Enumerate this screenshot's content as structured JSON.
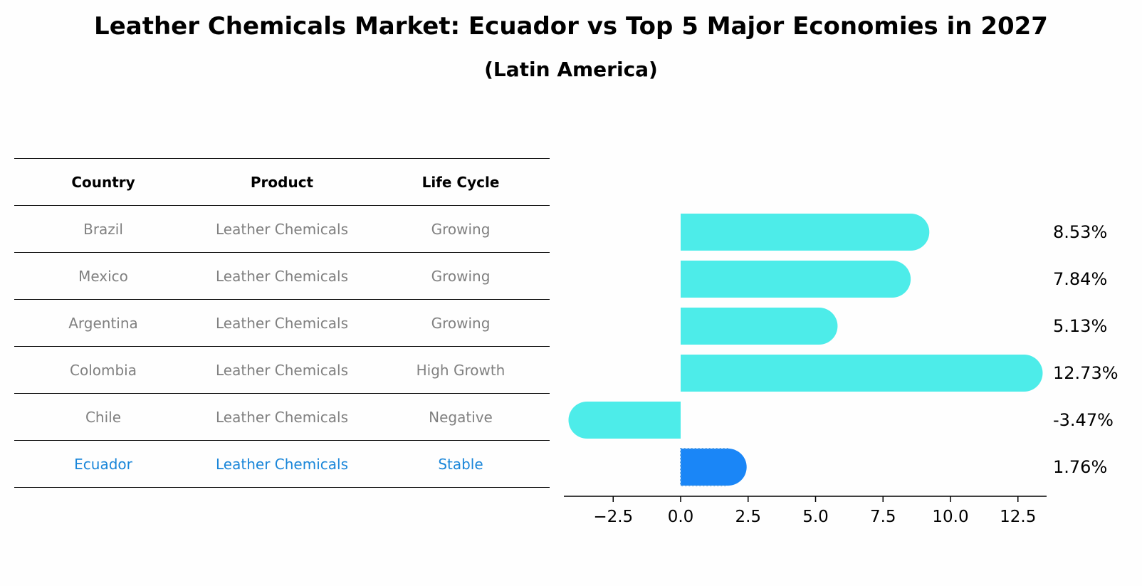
{
  "title": "Leather Chemicals Market: Ecuador vs Top 5 Major Economies in 2027",
  "subtitle": "(Latin America)",
  "table": {
    "headers": [
      "Country",
      "Product",
      "Life Cycle"
    ],
    "rows": [
      {
        "country": "Brazil",
        "product": "Leather Chemicals",
        "life_cycle": "Growing"
      },
      {
        "country": "Mexico",
        "product": "Leather Chemicals",
        "life_cycle": "Growing"
      },
      {
        "country": "Argentina",
        "product": "Leather Chemicals",
        "life_cycle": "Growing"
      },
      {
        "country": "Colombia",
        "product": "Leather Chemicals",
        "life_cycle": "High Growth"
      },
      {
        "country": "Chile",
        "product": "Leather Chemicals",
        "life_cycle": "Negative"
      },
      {
        "country": "Ecuador",
        "product": "Leather Chemicals",
        "life_cycle": "Stable"
      }
    ]
  },
  "colors": {
    "bar": "#4dece9",
    "highlight_bar": "#1a86f7",
    "highlight_text": "#1a86d9",
    "muted_text": "#808080"
  },
  "chart_data": {
    "type": "bar",
    "orientation": "horizontal",
    "categories": [
      "Brazil",
      "Mexico",
      "Argentina",
      "Colombia",
      "Chile",
      "Ecuador"
    ],
    "values": [
      8.53,
      7.84,
      5.13,
      12.73,
      -3.47,
      1.76
    ],
    "value_labels": [
      "8.53%",
      "7.84%",
      "5.13%",
      "12.73%",
      "-3.47%",
      "1.76%"
    ],
    "highlight_category": "Ecuador",
    "xlim": [
      -4.4,
      13.6
    ],
    "xticks": [
      -2.5,
      0.0,
      2.5,
      5.0,
      7.5,
      10.0,
      12.5
    ],
    "xtick_labels": [
      "−2.5",
      "0.0",
      "2.5",
      "5.0",
      "7.5",
      "10.0",
      "12.5"
    ],
    "grid": false
  }
}
